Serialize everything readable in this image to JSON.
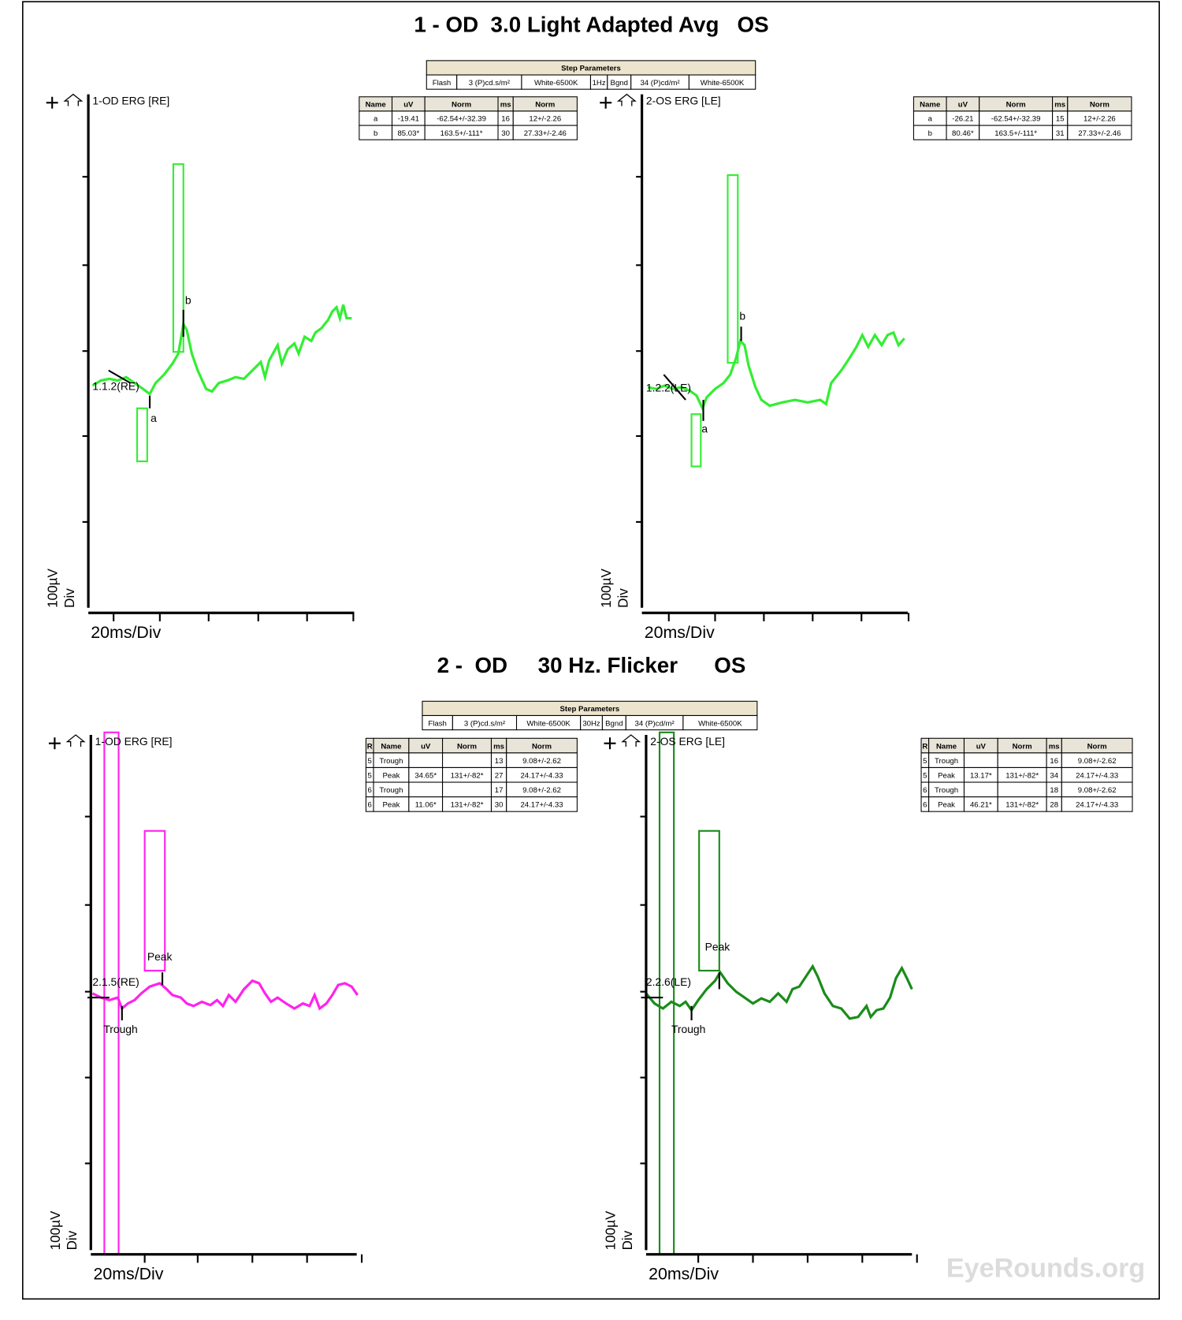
{
  "sections": [
    {
      "title": "1 - OD  3.0 Light Adapted Avg   OS",
      "step_parameters": {
        "header": "Step Parameters",
        "cells": [
          "Flash",
          "3 (P)cd.s/m²",
          "White-6500K",
          "1Hz",
          "Bgnd",
          "34 (P)cd/m²",
          "White-6500K"
        ]
      },
      "panels": [
        {
          "label": "1-OD ERG [RE]",
          "y_unit": "100µV",
          "y_div": "Div",
          "x_label": "20ms/Div",
          "markers": [
            "1.1.2(RE)",
            "a",
            "b"
          ],
          "table": {
            "columns": [
              "Name",
              "uV",
              "Norm",
              "ms",
              "Norm"
            ],
            "rows": [
              [
                "a",
                "-19.41",
                "-62.54+/-32.39",
                "16",
                "12+/-2.26"
              ],
              [
                "b",
                "85.03*",
                "163.5+/-111*",
                "30",
                "27.33+/-2.46"
              ]
            ]
          }
        },
        {
          "label": "2-OS ERG [LE]",
          "y_unit": "100µV",
          "y_div": "Div",
          "x_label": "20ms/Div",
          "markers": [
            "1.2.2(LE)",
            "a",
            "b"
          ],
          "table": {
            "columns": [
              "Name",
              "uV",
              "Norm",
              "ms",
              "Norm"
            ],
            "rows": [
              [
                "a",
                "-26.21",
                "-62.54+/-32.39",
                "15",
                "12+/-2.26"
              ],
              [
                "b",
                "80.46*",
                "163.5+/-111*",
                "31",
                "27.33+/-2.46"
              ]
            ]
          }
        }
      ]
    },
    {
      "title": "2 -  OD     30 Hz. Flicker      OS",
      "step_parameters": {
        "header": "Step Parameters",
        "cells": [
          "Flash",
          "3 (P)cd.s/m²",
          "White-6500K",
          "30Hz",
          "Bgnd",
          "34 (P)cd/m²",
          "White-6500K"
        ]
      },
      "panels": [
        {
          "label": "1-OD ERG [RE]",
          "y_unit": "100µV",
          "y_div": "Div",
          "x_label": "20ms/Div",
          "markers": [
            "2.1.5(RE)",
            "Trough",
            "Peak"
          ],
          "table": {
            "columns": [
              "R",
              "Name",
              "uV",
              "Norm",
              "ms",
              "Norm"
            ],
            "rows": [
              [
                "5",
                "Trough",
                null,
                null,
                "13",
                "9.08+/-2.62"
              ],
              [
                "5",
                "Peak",
                "34.65*",
                "131+/-82*",
                "27",
                "24.17+/-4.33"
              ],
              [
                "6",
                "Trough",
                null,
                null,
                "17",
                "9.08+/-2.62"
              ],
              [
                "6",
                "Peak",
                "11.06*",
                "131+/-82*",
                "30",
                "24.17+/-4.33"
              ]
            ]
          }
        },
        {
          "label": "2-OS ERG [LE]",
          "y_unit": "100µV",
          "y_div": "Div",
          "x_label": "20ms/Div",
          "markers": [
            "2.2.6(LE)",
            "Trough",
            "Peak"
          ],
          "table": {
            "columns": [
              "R",
              "Name",
              "uV",
              "Norm",
              "ms",
              "Norm"
            ],
            "rows": [
              [
                "5",
                "Trough",
                null,
                null,
                "16",
                "9.08+/-2.62"
              ],
              [
                "5",
                "Peak",
                "13.17*",
                "131+/-82*",
                "34",
                "24.17+/-4.33"
              ],
              [
                "6",
                "Trough",
                null,
                null,
                "18",
                "9.08+/-2.62"
              ],
              [
                "6",
                "Peak",
                "46.21*",
                "131+/-82*",
                "28",
                "24.17+/-4.33"
              ]
            ]
          }
        }
      ]
    }
  ],
  "watermark": "EyeRounds.org"
}
